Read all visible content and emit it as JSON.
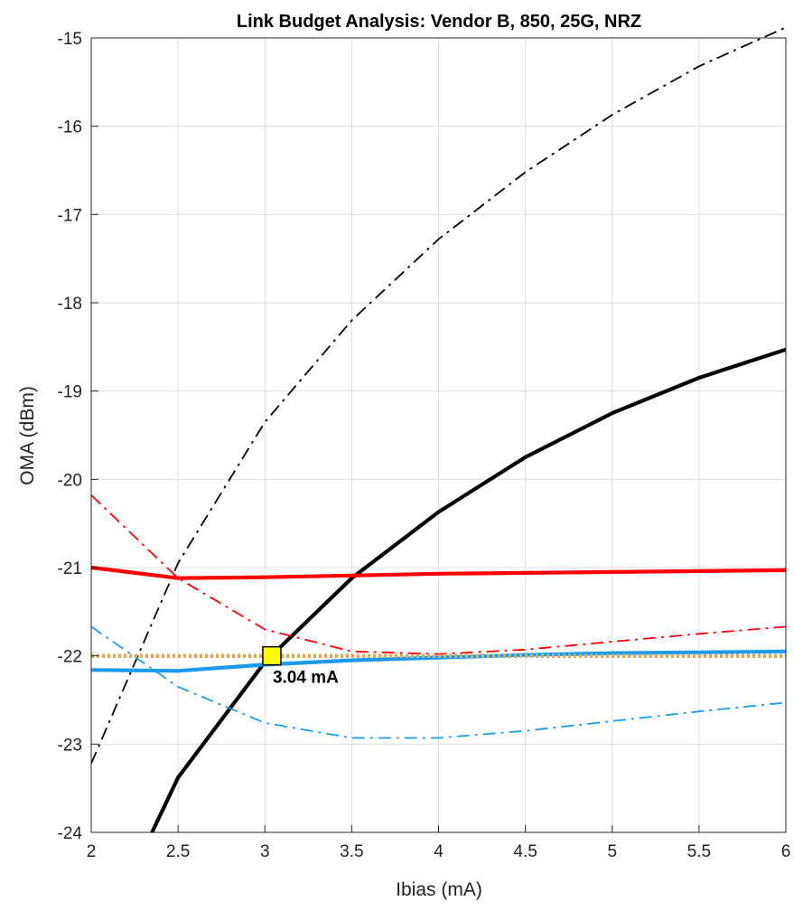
{
  "chart_data": {
    "type": "line",
    "title": "Link Budget Analysis: Vendor B, 850, 25G, NRZ",
    "xlabel": "Ibias (mA)",
    "ylabel": "OMA (dBm)",
    "xlim": [
      2,
      6
    ],
    "ylim": [
      -24,
      -15
    ],
    "xticks": [
      "2",
      "2.5",
      "3",
      "3.5",
      "4",
      "4.5",
      "5",
      "5.5",
      "6"
    ],
    "yticks": [
      "-15",
      "-16",
      "-17",
      "-18",
      "-19",
      "-20",
      "-21",
      "-22",
      "-23",
      "-24"
    ],
    "grid": true,
    "legend": "none",
    "series": [
      {
        "color": "#000000",
        "style": "dashdot",
        "width": "thin",
        "x": [
          2,
          2.5,
          3,
          3.5,
          4,
          4.5,
          5,
          5.5,
          6
        ],
        "y": [
          -23.22,
          -20.95,
          -19.35,
          -18.2,
          -17.28,
          -16.52,
          -15.87,
          -15.32,
          -14.88
        ]
      },
      {
        "color": "#000000",
        "style": "solid",
        "width": "thick",
        "x": [
          2.35,
          2.5,
          3,
          3.5,
          4,
          4.5,
          5,
          5.5,
          6
        ],
        "y": [
          -24.0,
          -23.38,
          -22.07,
          -21.12,
          -20.37,
          -19.75,
          -19.25,
          -18.85,
          -18.53
        ]
      },
      {
        "color": "#ff0000",
        "style": "solid",
        "width": "thick",
        "x": [
          2,
          2.5,
          3,
          3.5,
          4,
          4.5,
          5,
          5.5,
          6
        ],
        "y": [
          -21.0,
          -21.12,
          -21.11,
          -21.09,
          -21.07,
          -21.06,
          -21.05,
          -21.04,
          -21.03
        ]
      },
      {
        "color": "#ff0000",
        "style": "dashdot",
        "width": "thin",
        "x": [
          2,
          2.5,
          3,
          3.5,
          4,
          4.5,
          5,
          5.5,
          6
        ],
        "y": [
          -20.18,
          -21.12,
          -21.7,
          -21.95,
          -21.98,
          -21.93,
          -21.84,
          -21.75,
          -21.67
        ]
      },
      {
        "color": "#1a9bef",
        "style": "solid",
        "width": "thick",
        "x": [
          2,
          2.5,
          3,
          3.5,
          4,
          4.5,
          5,
          5.5,
          6
        ],
        "y": [
          -22.16,
          -22.17,
          -22.1,
          -22.05,
          -22.02,
          -21.99,
          -21.97,
          -21.96,
          -21.95
        ]
      },
      {
        "color": "#1a9bef",
        "style": "dashdot",
        "width": "thin",
        "x": [
          2,
          2.5,
          3,
          3.5,
          4,
          4.5,
          5,
          5.5,
          6
        ],
        "y": [
          -21.67,
          -22.35,
          -22.76,
          -22.93,
          -22.93,
          -22.85,
          -22.74,
          -22.63,
          -22.53
        ]
      },
      {
        "color": "#f0a830",
        "style": "dotted",
        "width": "thick",
        "x": [
          2,
          6
        ],
        "y": [
          -22.0,
          -22.0
        ]
      }
    ],
    "annotations": [
      {
        "text": "3.04 mA",
        "x": 3.04,
        "y": -22.0,
        "marker": "square",
        "marker_color": "#ffff00"
      }
    ]
  }
}
